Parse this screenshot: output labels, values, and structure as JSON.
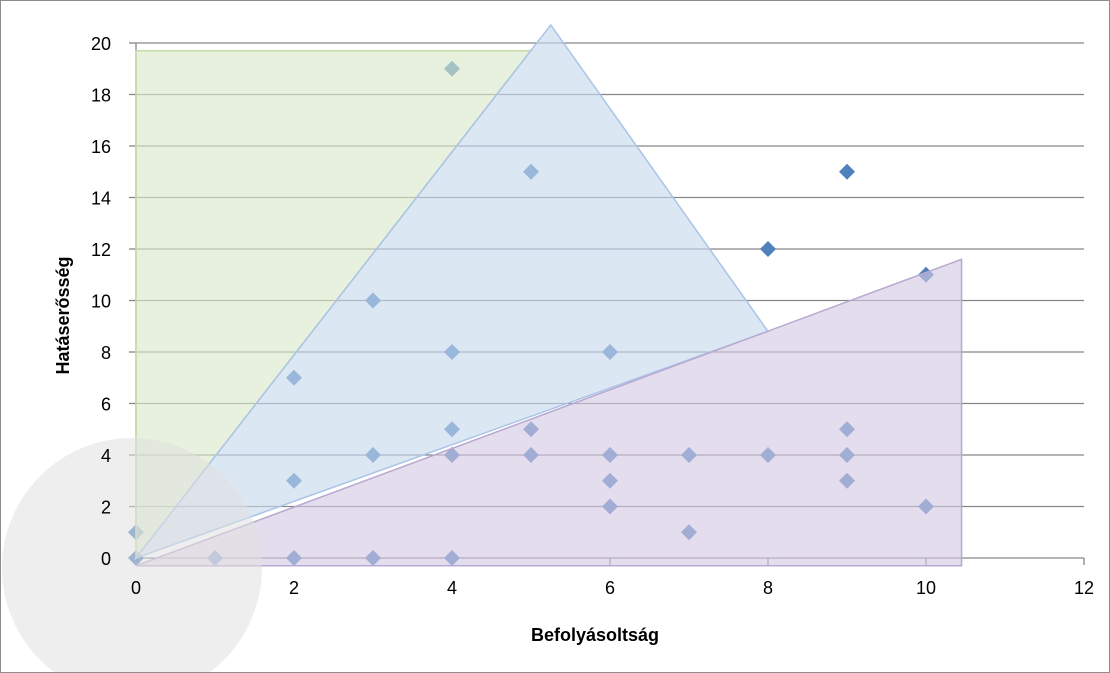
{
  "chart_data": {
    "type": "scatter",
    "title": "",
    "xlabel": "Befolyásoltság",
    "ylabel": "Hatáserősség",
    "xlim": [
      0,
      12
    ],
    "ylim": [
      0,
      20
    ],
    "x_ticks": [
      0,
      2,
      4,
      6,
      8,
      10,
      12
    ],
    "y_ticks": [
      0,
      2,
      4,
      6,
      8,
      10,
      12,
      14,
      16,
      18,
      20
    ],
    "grid": "horizontal",
    "legend": "none",
    "points": [
      {
        "x": 0,
        "y": 0
      },
      {
        "x": 0,
        "y": 1
      },
      {
        "x": 1,
        "y": 0
      },
      {
        "x": 2,
        "y": 0
      },
      {
        "x": 2,
        "y": 3
      },
      {
        "x": 2,
        "y": 7
      },
      {
        "x": 3,
        "y": 0
      },
      {
        "x": 3,
        "y": 4
      },
      {
        "x": 3,
        "y": 10
      },
      {
        "x": 4,
        "y": 0
      },
      {
        "x": 4,
        "y": 4
      },
      {
        "x": 4,
        "y": 5
      },
      {
        "x": 4,
        "y": 8
      },
      {
        "x": 4,
        "y": 19
      },
      {
        "x": 5,
        "y": 4
      },
      {
        "x": 5,
        "y": 5
      },
      {
        "x": 5,
        "y": 15
      },
      {
        "x": 6,
        "y": 2
      },
      {
        "x": 6,
        "y": 3
      },
      {
        "x": 6,
        "y": 4
      },
      {
        "x": 6,
        "y": 8
      },
      {
        "x": 7,
        "y": 1
      },
      {
        "x": 7,
        "y": 4
      },
      {
        "x": 8,
        "y": 4
      },
      {
        "x": 8,
        "y": 12
      },
      {
        "x": 9,
        "y": 3
      },
      {
        "x": 9,
        "y": 4
      },
      {
        "x": 9,
        "y": 5
      },
      {
        "x": 9,
        "y": 15
      },
      {
        "x": 10,
        "y": 2
      },
      {
        "x": 10,
        "y": 11
      }
    ],
    "regions": [
      {
        "color": "#d9e8c8",
        "stroke": "#c4dba7",
        "polygon": [
          [
            0,
            0
          ],
          [
            0,
            19.7
          ],
          [
            5,
            19.7
          ]
        ]
      },
      {
        "color": "#c6d8ee",
        "stroke": "#a9c4e6",
        "polygon": [
          [
            0,
            0
          ],
          [
            5.25,
            20.7
          ],
          [
            8,
            8.8
          ]
        ]
      },
      {
        "color": "#d4c8e2",
        "stroke": "#b8a8d2",
        "polygon": [
          [
            0,
            -0.3
          ],
          [
            10.45,
            11.6
          ],
          [
            10.45,
            -0.3
          ]
        ]
      }
    ],
    "colors": {
      "point": "#4f81bd",
      "grid": "#868686",
      "axis": "#868686",
      "origin_circle": "#e0e0e0"
    }
  }
}
